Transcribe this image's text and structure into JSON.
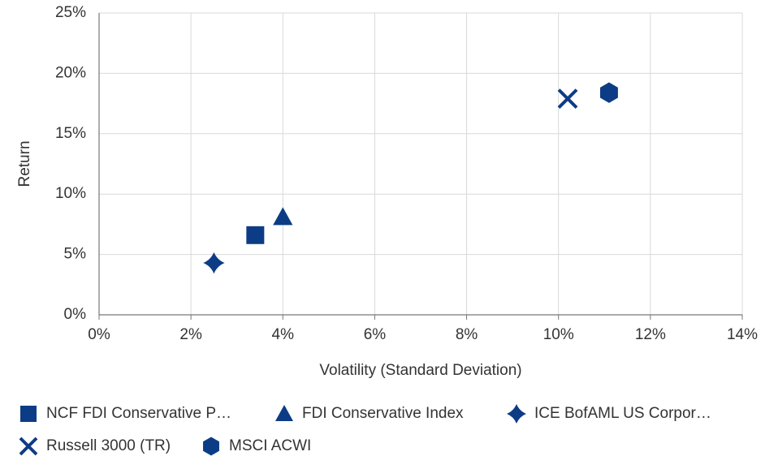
{
  "chart_data": {
    "type": "scatter",
    "x_label": "Volatility (Standard Deviation)",
    "y_label": "Return",
    "xlim": [
      0,
      14
    ],
    "ylim": [
      0,
      25
    ],
    "xticks": [
      {
        "value": 0,
        "label": "0%"
      },
      {
        "value": 2,
        "label": "2%"
      },
      {
        "value": 4,
        "label": "4%"
      },
      {
        "value": 6,
        "label": "6%"
      },
      {
        "value": 8,
        "label": "8%"
      },
      {
        "value": 10,
        "label": "10%"
      },
      {
        "value": 12,
        "label": "12%"
      },
      {
        "value": 14,
        "label": "14%"
      }
    ],
    "yticks": [
      {
        "value": 0,
        "label": "0%"
      },
      {
        "value": 5,
        "label": "5%"
      },
      {
        "value": 10,
        "label": "10%"
      },
      {
        "value": 15,
        "label": "15%"
      },
      {
        "value": 20,
        "label": "20%"
      },
      {
        "value": 25,
        "label": "25%"
      }
    ],
    "grid": true,
    "legend": "bottom",
    "series": [
      {
        "name": "NCF FDI Conservative P…",
        "color": "#0c3c85",
        "marker": "square",
        "x": [
          3.4
        ],
        "values": [
          6.6
        ]
      },
      {
        "name": "FDI Conservative Index",
        "color": "#0c3c85",
        "marker": "triangle",
        "x": [
          4.0
        ],
        "values": [
          8.1
        ]
      },
      {
        "name": "ICE BofAML US Corpor…",
        "color": "#0c3c85",
        "marker": "star",
        "x": [
          2.5
        ],
        "values": [
          4.3
        ]
      },
      {
        "name": "Russell 3000 (TR)",
        "color": "#0c3c85",
        "marker": "x",
        "x": [
          10.2
        ],
        "values": [
          17.9
        ]
      },
      {
        "name": "MSCI ACWI",
        "color": "#0c3c85",
        "marker": "hexagon",
        "x": [
          11.1
        ],
        "values": [
          18.4
        ]
      }
    ]
  }
}
